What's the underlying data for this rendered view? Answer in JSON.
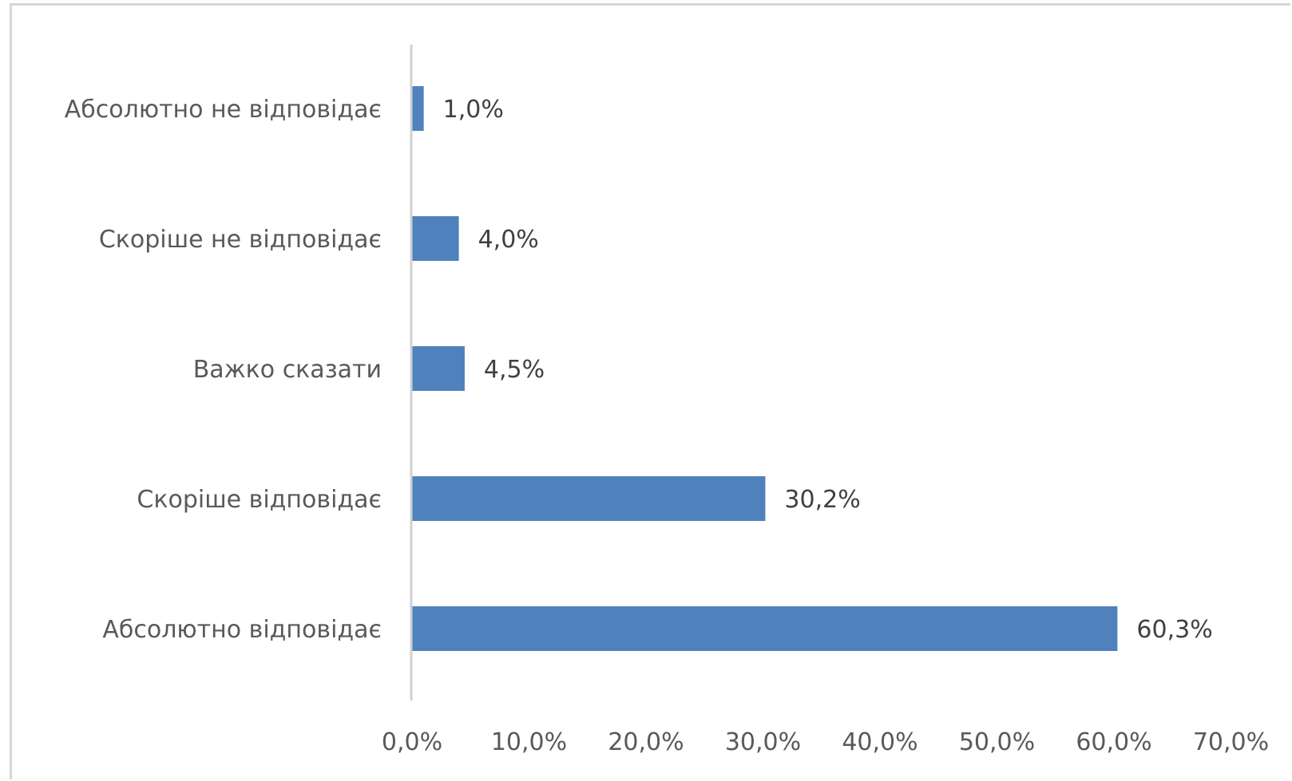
{
  "chart_data": {
    "type": "bar",
    "orientation": "horizontal",
    "categories": [
      "Абсолютно не відповідає",
      "Скоріше не відповідає",
      "Важко сказати",
      "Скоріше відповідає",
      "Абсолютно відповідає"
    ],
    "values": [
      1.0,
      4.0,
      4.5,
      30.2,
      60.3
    ],
    "value_labels": [
      "1,0%",
      "4,0%",
      "4,5%",
      "30,2%",
      "60,3%"
    ],
    "x_ticks": [
      0,
      10,
      20,
      30,
      40,
      50,
      60,
      70
    ],
    "x_tick_labels": [
      "0,0%",
      "10,0%",
      "20,0%",
      "30,0%",
      "40,0%",
      "50,0%",
      "60,0%",
      "70,0%"
    ],
    "xlim": [
      0,
      70
    ],
    "title": "",
    "xlabel": "",
    "ylabel": "",
    "grid": false,
    "legend": "none",
    "bar_color": "#4f81bd"
  }
}
